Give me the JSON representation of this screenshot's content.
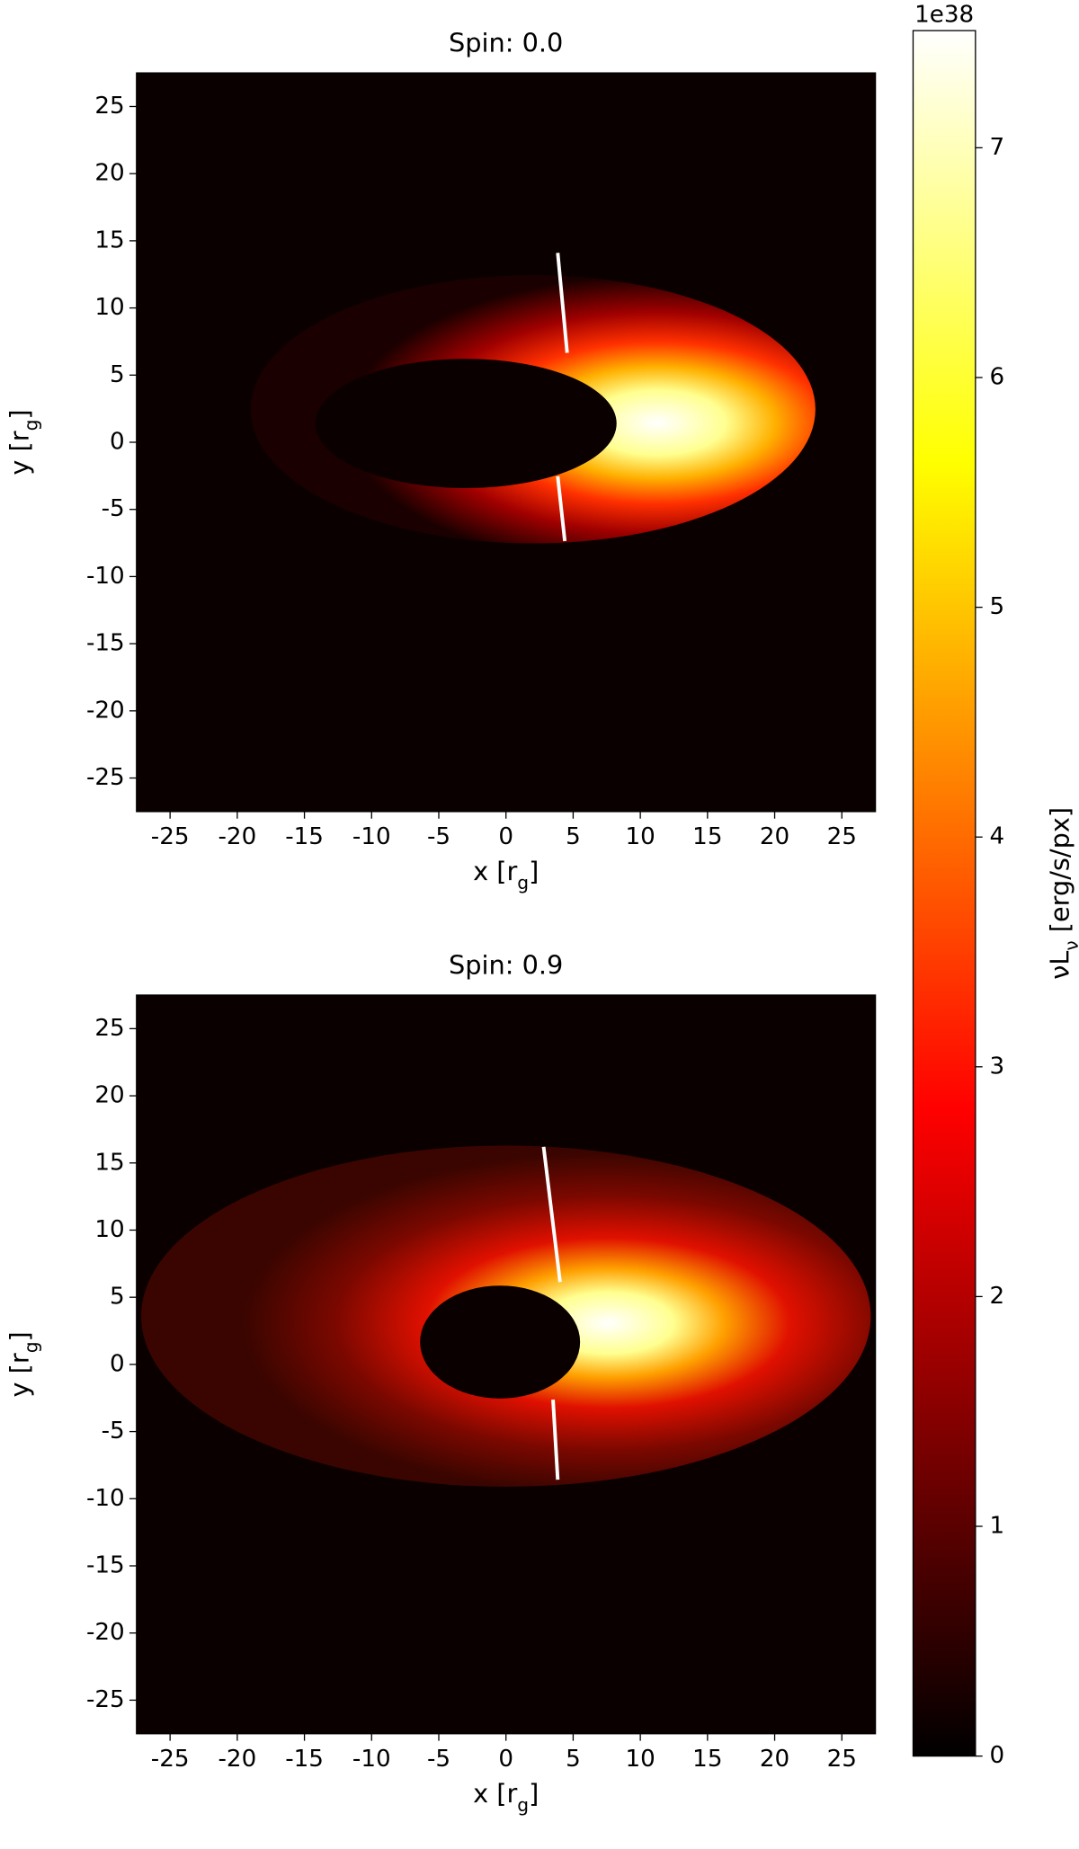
{
  "chart_data": [
    {
      "type": "image",
      "title": "Spin: 0.0",
      "xlabel": "x [r_g]",
      "ylabel": "y [r_g]",
      "xlim": [
        -27.5,
        27.5
      ],
      "ylim": [
        -27.5,
        27.5
      ],
      "xticks": [
        -25,
        -20,
        -15,
        -10,
        -5,
        0,
        5,
        10,
        15,
        20,
        25
      ],
      "yticks": [
        -25,
        -20,
        -15,
        -10,
        -5,
        0,
        5,
        10,
        15,
        20,
        25
      ]
    },
    {
      "type": "image",
      "title": "Spin: 0.9",
      "xlabel": "x [r_g]",
      "ylabel": "y [r_g]",
      "xlim": [
        -27.5,
        27.5
      ],
      "ylim": [
        -27.5,
        27.5
      ],
      "xticks": [
        -25,
        -20,
        -15,
        -10,
        -5,
        0,
        5,
        10,
        15,
        20,
        25
      ],
      "yticks": [
        -25,
        -20,
        -15,
        -10,
        -5,
        0,
        5,
        10,
        15,
        20,
        25
      ]
    },
    {
      "type": "colorbar",
      "label": "νL_ν [erg/s/px]",
      "offset_text": "1e38",
      "ylim": [
        0,
        7.51
      ],
      "yticks": [
        0,
        1,
        2,
        3,
        4,
        5,
        6,
        7
      ],
      "colors": [
        "#000000",
        "#550000",
        "#aa0000",
        "#ff0000",
        "#ff5500",
        "#ffaa00",
        "#ffff00",
        "#ffff80",
        "#ffffff"
      ]
    }
  ]
}
